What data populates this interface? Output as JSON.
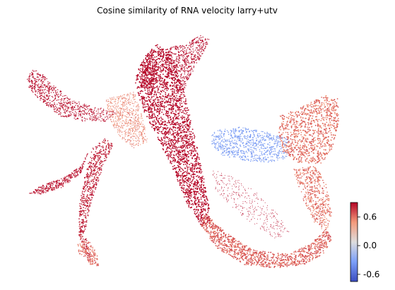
{
  "chart_data": {
    "type": "scatter",
    "title": "Cosine similarity of RNA velocity larry+utv",
    "xlabel": "",
    "ylabel": "",
    "axes_visible": false,
    "colormap": "coolwarm",
    "color_scale": {
      "min": -0.75,
      "max": 0.9,
      "ticks": [
        0.6,
        0.0,
        -0.6
      ],
      "tick_labels": [
        "0.6",
        "0.0",
        "-0.6"
      ],
      "low_color": "#3b4cc0",
      "mid_color": "#dddddd",
      "high_color": "#b40426"
    },
    "regions": [
      {
        "value": 0.95
      },
      {
        "value": 0.95
      },
      {
        "value": 0.95
      },
      {
        "value": 0.92
      },
      {
        "value": 0.9
      },
      {
        "value": 0.85
      },
      {
        "value": 0.6
      },
      {
        "value": 0.55
      },
      {
        "value": -0.3
      },
      {
        "value": 0.6
      },
      {
        "value": 0.65
      },
      {
        "value": 0.6
      },
      {
        "value": 0.95
      }
    ]
  }
}
